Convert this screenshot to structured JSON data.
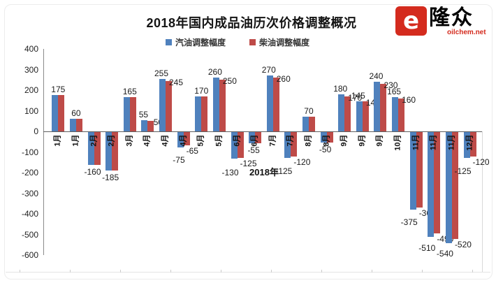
{
  "title": "2018年国内成品油历次价格调整概况",
  "legend": {
    "gasoline": {
      "label": "汽油调整幅度",
      "color": "#4F81BD"
    },
    "diesel": {
      "label": "柴油调整幅度",
      "color": "#BE4B48"
    }
  },
  "logo": {
    "icon_glyph": "e",
    "name": "隆众",
    "domain": "oilchem.net",
    "color": "#D42B1E"
  },
  "axis": {
    "x_title": "2018年",
    "y_ticks": [
      400,
      300,
      200,
      100,
      0,
      -100,
      -200,
      -300,
      -400,
      -500,
      -600
    ]
  },
  "chart_data": {
    "type": "bar",
    "title": "2018年国内成品油历次价格调整概况",
    "x_title": "2018年",
    "ylim": [
      -600,
      400
    ],
    "y_ticks": [
      400,
      300,
      200,
      100,
      0,
      -100,
      -200,
      -300,
      -400,
      -500,
      -600
    ],
    "grid": false,
    "legend_position": "top",
    "series": [
      {
        "name": "汽油调整幅度",
        "color": "#4F81BD"
      },
      {
        "name": "柴油调整幅度",
        "color": "#BE4B48"
      }
    ],
    "categories": [
      "1月",
      "1月",
      "2月",
      "2月",
      "3月",
      "4月",
      "4月",
      "4月",
      "5月",
      "5月",
      "6月",
      "6月",
      "7月",
      "7月",
      "8月",
      "8月",
      "9月",
      "9月",
      "9月",
      "10月",
      "11月",
      "11月",
      "11月",
      "12月"
    ],
    "entries": [
      {
        "month": "1月",
        "gasoline": 175,
        "diesel": 175,
        "label_mode": "single"
      },
      {
        "month": "1月",
        "gasoline": 60,
        "diesel": 60,
        "label_mode": "single"
      },
      {
        "month": "2月",
        "gasoline": -160,
        "diesel": -160,
        "label_mode": "single"
      },
      {
        "month": "2月",
        "gasoline": -185,
        "diesel": -185,
        "label_mode": "single"
      },
      {
        "month": "3月",
        "gasoline": 165,
        "diesel": 165,
        "label_mode": "single"
      },
      {
        "month": "4月",
        "gasoline": 55,
        "diesel": 50,
        "label_mode": "pair"
      },
      {
        "month": "4月",
        "gasoline": 255,
        "diesel": 245,
        "label_mode": "pair"
      },
      {
        "month": "4月",
        "gasoline": -75,
        "diesel": -65,
        "label_mode": "pair"
      },
      {
        "month": "5月",
        "gasoline": 170,
        "diesel": 170,
        "label_mode": "single"
      },
      {
        "month": "5月",
        "gasoline": 260,
        "diesel": 250,
        "label_mode": "pair"
      },
      {
        "month": "6月",
        "gasoline": -130,
        "diesel": -125,
        "label_mode": "pair"
      },
      {
        "month": "6月",
        "gasoline": -55,
        "diesel": -55,
        "label_mode": "single"
      },
      {
        "month": "7月",
        "gasoline": 270,
        "diesel": 260,
        "label_mode": "pair"
      },
      {
        "month": "7月",
        "gasoline": -125,
        "diesel": -120,
        "label_mode": "pair"
      },
      {
        "month": "8月",
        "gasoline": 70,
        "diesel": 70,
        "label_mode": "single"
      },
      {
        "month": "8月",
        "gasoline": -50,
        "diesel": -50,
        "label_mode": "single"
      },
      {
        "month": "9月",
        "gasoline": 180,
        "diesel": 170,
        "label_mode": "pair"
      },
      {
        "month": "9月",
        "gasoline": 145,
        "diesel": 145,
        "label_mode": "pair"
      },
      {
        "month": "9月",
        "gasoline": 240,
        "diesel": 230,
        "label_mode": "pair"
      },
      {
        "month": "10月",
        "gasoline": 165,
        "diesel": 160,
        "label_mode": "pair"
      },
      {
        "month": "11月",
        "gasoline": -375,
        "diesel": -365,
        "label_mode": "pair"
      },
      {
        "month": "11月",
        "gasoline": -510,
        "diesel": -490,
        "label_mode": "pair"
      },
      {
        "month": "11月",
        "gasoline": -540,
        "diesel": -520,
        "label_mode": "pair"
      },
      {
        "month": "12月",
        "gasoline": -125,
        "diesel": -120,
        "label_mode": "pair"
      }
    ]
  }
}
